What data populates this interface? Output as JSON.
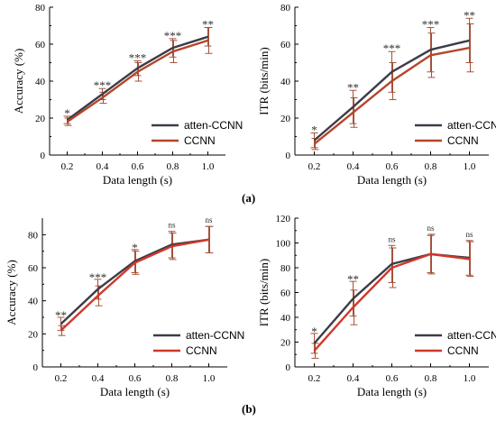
{
  "figure": {
    "captions": [
      "(a)",
      "(b)"
    ]
  },
  "colors": {
    "atten_ccnn": "#3c3c48",
    "ccnn": "#b5452a",
    "ccnn_b": "#d0382b",
    "error": "#a4523a",
    "sig": "#2f2f2f"
  },
  "chart_data": [
    {
      "id": "a-acc",
      "type": "line",
      "xlabel": "Data length (s)",
      "ylabel": "Accuracy (%)",
      "x": [
        0.2,
        0.4,
        0.6,
        0.8,
        1.0
      ],
      "x_ticks": [
        "0.2",
        "0.4",
        "0.6",
        "0.8",
        "1.0"
      ],
      "xlim": [
        0.1,
        1.1
      ],
      "ylim": [
        0,
        80
      ],
      "y_ticks": [
        0,
        20,
        40,
        60,
        80
      ],
      "legend": "bottom-right",
      "series": [
        {
          "name": "atten-CCNN",
          "values": [
            19,
            33,
            47,
            58,
            64
          ],
          "err": [
            2,
            3,
            4,
            5,
            5
          ]
        },
        {
          "name": "CCNN",
          "values": [
            18,
            31,
            45,
            56,
            62
          ],
          "err": [
            2,
            3,
            5,
            6,
            7
          ]
        }
      ],
      "significance": [
        "*",
        "***",
        "***",
        "***",
        "**"
      ]
    },
    {
      "id": "a-itr",
      "type": "line",
      "xlabel": "Data length (s)",
      "ylabel": "ITR (bits/min)",
      "x": [
        0.2,
        0.4,
        0.6,
        0.8,
        1.0
      ],
      "x_ticks": [
        "0.2",
        "0.4",
        "0.6",
        "0.8",
        "1.0"
      ],
      "xlim": [
        0.1,
        1.1
      ],
      "ylim": [
        0,
        80
      ],
      "y_ticks": [
        0,
        20,
        40,
        60,
        80
      ],
      "legend": "bottom-right",
      "series": [
        {
          "name": "atten-CCNN",
          "values": [
            8,
            26,
            45,
            57,
            62
          ],
          "err": [
            4,
            9,
            11,
            12,
            12
          ]
        },
        {
          "name": "CCNN",
          "values": [
            6,
            23,
            40,
            54,
            58
          ],
          "err": [
            3,
            8,
            10,
            12,
            13
          ]
        }
      ],
      "significance": [
        "*",
        "**",
        "***",
        "***",
        "**"
      ]
    },
    {
      "id": "b-acc",
      "type": "line",
      "xlabel": "Data length (s)",
      "ylabel": "Accuracy (%)",
      "x": [
        0.2,
        0.4,
        0.6,
        0.8,
        1.0
      ],
      "x_ticks": [
        "0.2",
        "0.4",
        "0.6",
        "0.8",
        "1.0"
      ],
      "xlim": [
        0.1,
        1.1
      ],
      "ylim": [
        0,
        90
      ],
      "y_ticks": [
        0,
        20,
        40,
        60,
        80
      ],
      "legend": "bottom-right",
      "series": [
        {
          "name": "atten-CCNN",
          "values": [
            26,
            47,
            64,
            74,
            77
          ],
          "err": [
            4,
            6,
            7,
            8,
            8
          ]
        },
        {
          "name": "CCNN",
          "values": [
            22,
            43,
            63,
            73,
            77
          ],
          "err": [
            3,
            6,
            7,
            8,
            8
          ]
        }
      ],
      "significance": [
        "**",
        "***",
        "*",
        "ns",
        "ns"
      ]
    },
    {
      "id": "b-itr",
      "type": "line",
      "xlabel": "Data length (s)",
      "ylabel": "ITR (bits/min)",
      "x": [
        0.2,
        0.4,
        0.6,
        0.8,
        1.0
      ],
      "x_ticks": [
        "0.2",
        "0.4",
        "0.6",
        "0.8",
        "1.0"
      ],
      "xlim": [
        0.1,
        1.1
      ],
      "ylim": [
        0,
        120
      ],
      "y_ticks": [
        0,
        20,
        40,
        60,
        80,
        100,
        120
      ],
      "legend": "bottom-right",
      "series": [
        {
          "name": "atten-CCNN",
          "values": [
            19,
            55,
            83,
            91,
            88
          ],
          "err": [
            8,
            14,
            15,
            15,
            14
          ]
        },
        {
          "name": "CCNN",
          "values": [
            13,
            48,
            80,
            91,
            87
          ],
          "err": [
            6,
            14,
            16,
            16,
            14
          ]
        }
      ],
      "significance": [
        "*",
        "**",
        "ns",
        "ns",
        "ns"
      ]
    }
  ]
}
